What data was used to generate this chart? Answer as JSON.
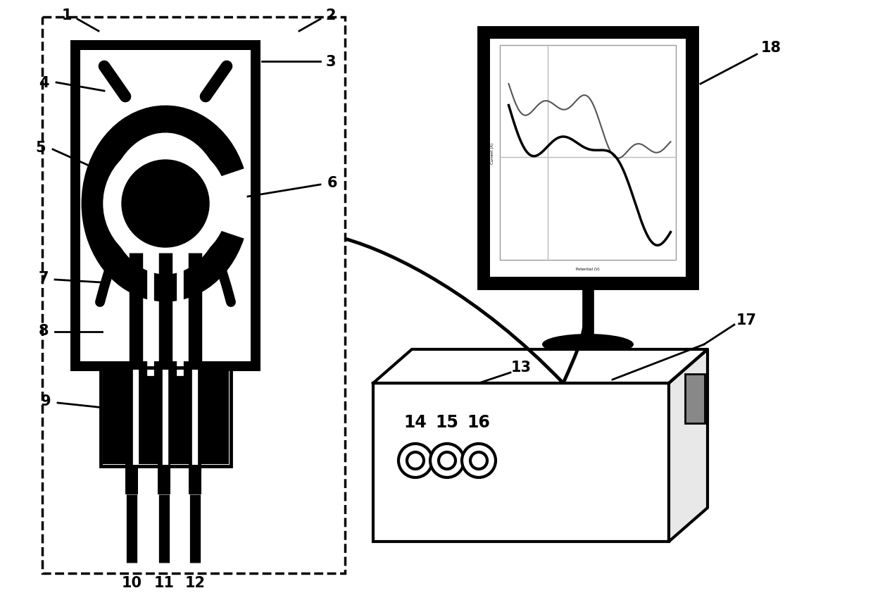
{
  "bg_color": "#ffffff",
  "line_color": "#000000",
  "label_fontsize": 15,
  "label_fontweight": "bold"
}
